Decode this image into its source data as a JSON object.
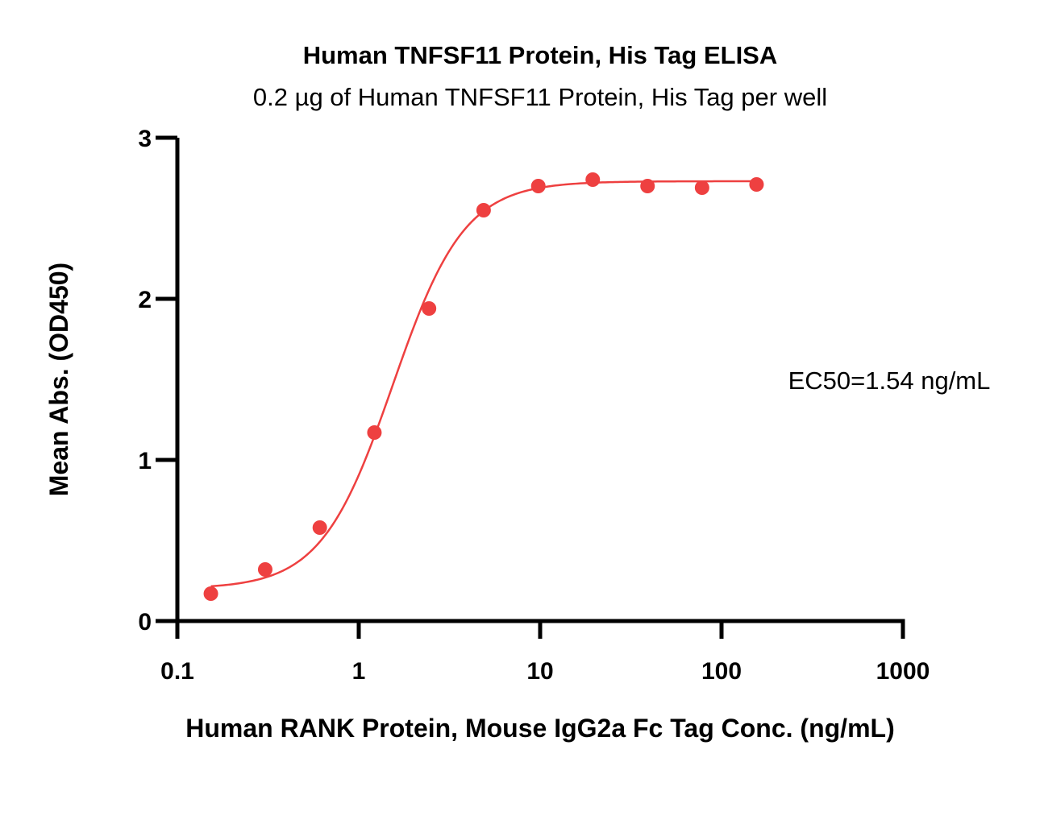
{
  "chart_data": {
    "type": "scatter",
    "title": "Human TNFSF11 Protein, His Tag ELISA",
    "subtitle": "0.2 µg of Human TNFSF11 Protein, His Tag per well",
    "xlabel": "Human RANK Protein, Mouse IgG2a Fc Tag Conc. (ng/mL)",
    "ylabel": "Mean Abs. (OD450)",
    "x_scale": "log",
    "xlim": [
      0.1,
      1000
    ],
    "ylim": [
      0,
      3
    ],
    "x_ticks": [
      0.1,
      1,
      10,
      100,
      1000
    ],
    "x_tick_labels": [
      "0.1",
      "1",
      "10",
      "100",
      "1000"
    ],
    "y_ticks": [
      0,
      1,
      2,
      3
    ],
    "y_tick_labels": [
      "0",
      "1",
      "2",
      "3"
    ],
    "grid": false,
    "annotation": "EC50=1.54 ng/mL",
    "color": "#ee4040",
    "series": [
      {
        "x": [
          0.153,
          0.305,
          0.61,
          1.22,
          2.44,
          4.88,
          9.77,
          19.5,
          39.1,
          78.1,
          156
        ],
        "y": [
          0.17,
          0.32,
          0.58,
          1.17,
          1.94,
          2.55,
          2.7,
          2.74,
          2.7,
          2.69,
          2.71
        ]
      }
    ],
    "fit_curve": {
      "model": "4PL",
      "bottom": 0.2,
      "top": 2.73,
      "ec50": 1.54,
      "hill_slope": 2.2,
      "x_range": [
        0.153,
        156
      ]
    }
  }
}
